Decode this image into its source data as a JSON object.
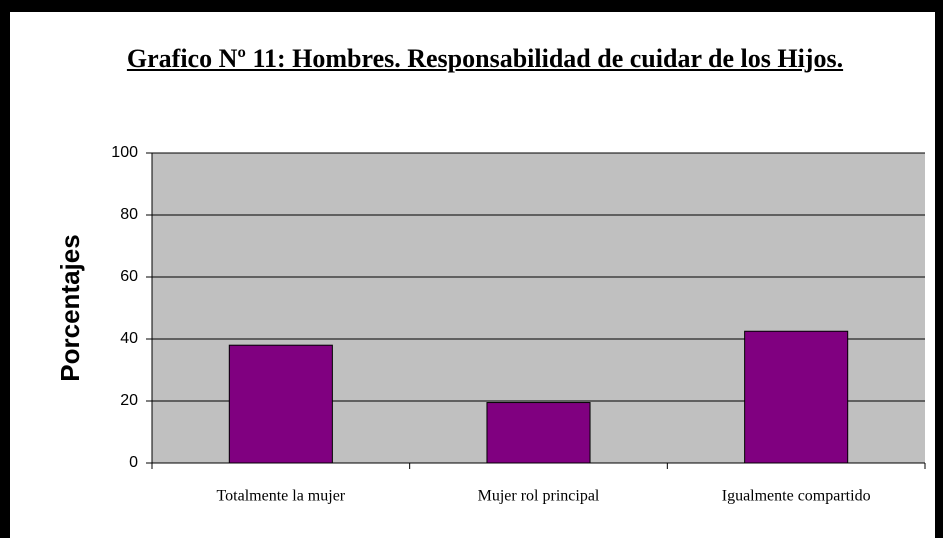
{
  "chart_data": {
    "type": "bar",
    "title": "Grafico Nº 11: Hombres. Responsabilidad de cuidar de los Hijos.",
    "ylabel": "Porcentajes",
    "categories": [
      "Totalmente la mujer",
      "Mujer rol principal",
      "Igualmente compartido"
    ],
    "values": [
      38,
      19.5,
      42.5
    ],
    "color": "#800080",
    "ylim": [
      0,
      100
    ],
    "yticks": [
      0,
      20,
      40,
      60,
      80,
      100
    ],
    "grid": true
  }
}
